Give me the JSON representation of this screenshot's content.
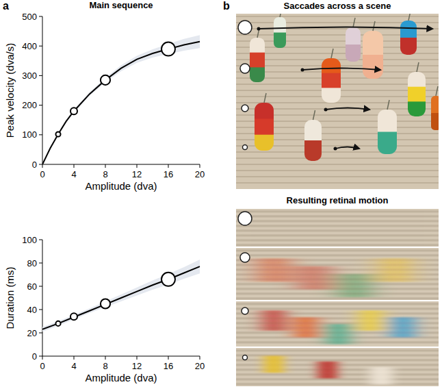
{
  "figure": {
    "panel_a": "a",
    "panel_b": "b",
    "scene_title": "Saccades across a scene",
    "motion_title": "Resulting retinal motion"
  },
  "chart_data": [
    {
      "type": "line",
      "title": "Main sequence",
      "x_label": "Amplitude (dva)",
      "y_label": "Peak velocity (dva/s)",
      "xlim": [
        0,
        20
      ],
      "xticks": [
        0,
        4,
        8,
        12,
        16,
        20
      ],
      "ylim": [
        0,
        500
      ],
      "yticks": [
        0,
        100,
        200,
        300,
        400,
        500
      ],
      "grid": false,
      "series": [
        {
          "type": "line",
          "color": "#000000",
          "x": [
            0,
            1,
            2,
            3,
            4,
            6,
            8,
            10,
            12,
            14,
            16,
            18,
            20
          ],
          "values": [
            0,
            55,
            102,
            145,
            180,
            238,
            285,
            325,
            355,
            375,
            390,
            404,
            415
          ],
          "error": [
            0,
            2,
            3,
            4,
            5,
            6,
            8,
            10,
            12,
            14,
            17,
            20,
            22
          ]
        },
        {
          "type": "scatter",
          "color": "#000000",
          "marker": "circle",
          "x": [
            2,
            4,
            8,
            16
          ],
          "values": [
            102,
            180,
            285,
            390
          ],
          "size": [
            2,
            4,
            8,
            16
          ]
        }
      ]
    },
    {
      "type": "line",
      "x_label": "Amplitude (dva)",
      "y_label": "Duration (ms)",
      "xlim": [
        0,
        20
      ],
      "xticks": [
        0,
        4,
        8,
        12,
        16,
        20
      ],
      "ylim": [
        0,
        100
      ],
      "yticks": [
        0,
        20,
        40,
        60,
        80,
        100
      ],
      "grid": false,
      "series": [
        {
          "type": "line",
          "color": "#000000",
          "x": [
            0,
            2,
            4,
            6,
            8,
            10,
            12,
            14,
            16,
            18,
            20
          ],
          "values": [
            23,
            28,
            33.5,
            39,
            44.5,
            50,
            55.5,
            61,
            66,
            71.5,
            77
          ],
          "error": [
            2,
            2,
            2,
            2,
            2.5,
            3,
            3.5,
            4,
            4.5,
            5,
            6
          ]
        },
        {
          "type": "scatter",
          "color": "#000000",
          "marker": "circle",
          "x": [
            2,
            4,
            8,
            16
          ],
          "values": [
            28,
            34,
            45,
            66
          ],
          "size": [
            2,
            4,
            8,
            16
          ]
        }
      ]
    }
  ]
}
